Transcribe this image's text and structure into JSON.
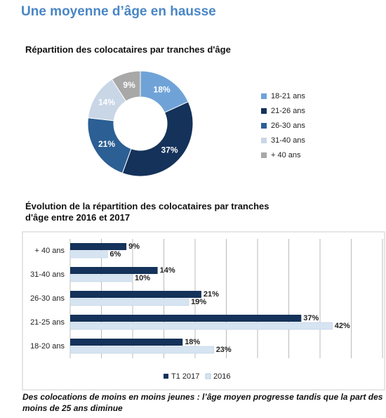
{
  "title": "Une moyenne d’âge en hausse",
  "caption": "Des colocations de moins en moins jeunes : l’âge moyen progresse tandis que la part des moins de 25 ans diminue",
  "chart_data": [
    {
      "type": "donut",
      "title": "Répartition des colocataires par tranches d'âge",
      "categories": [
        "18-21 ans",
        "21-26 ans",
        "26-30 ans",
        "31-40 ans",
        "+ 40 ans"
      ],
      "values": [
        18,
        37,
        21,
        14,
        9
      ],
      "value_labels": [
        "18%",
        "37%",
        "21%",
        "14%",
        "9%"
      ],
      "colors": [
        "#6fa3d8",
        "#14325a",
        "#2c5f94",
        "#c8d6e6",
        "#a8a8a8"
      ],
      "legend": "right"
    },
    {
      "type": "hbar",
      "title": "Évolution de la répartition des colocataires par tranches d'âge entre 2016 et 2017",
      "categories": [
        "+ 40 ans",
        "31-40 ans",
        "26-30 ans",
        "21-25 ans",
        "18-20 ans"
      ],
      "series": [
        {
          "name": "T1 2017",
          "color": "#14325a",
          "values": [
            9,
            14,
            21,
            37,
            18
          ],
          "value_labels": [
            "9%",
            "14%",
            "21%",
            "37%",
            "18%"
          ]
        },
        {
          "name": "2016",
          "color": "#d6e4f2",
          "values": [
            6,
            10,
            19,
            42,
            23
          ],
          "value_labels": [
            "6%",
            "10%",
            "19%",
            "42%",
            "23%"
          ]
        }
      ],
      "xlim": [
        0,
        50
      ],
      "xticks": [
        0,
        5,
        10,
        15,
        20,
        25,
        30,
        35,
        40,
        45,
        50
      ],
      "grid": true,
      "legend": "bottom"
    }
  ]
}
